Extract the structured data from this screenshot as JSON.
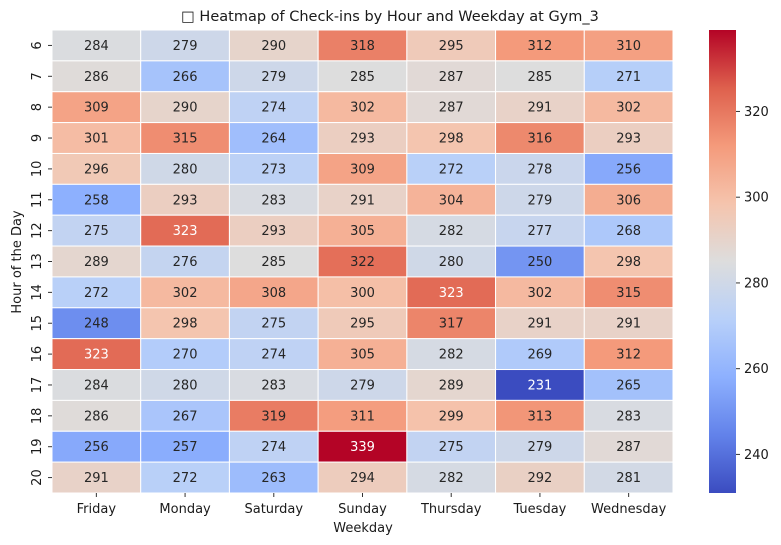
{
  "chart_data": {
    "type": "heatmap",
    "title": "□ Heatmap of Check-ins by Hour and Weekday at Gym_3",
    "xlabel": "Weekday",
    "ylabel": "Hour of the Day",
    "x_categories": [
      "Friday",
      "Monday",
      "Saturday",
      "Sunday",
      "Thursday",
      "Tuesday",
      "Wednesday"
    ],
    "y_categories": [
      "6",
      "7",
      "8",
      "9",
      "10",
      "11",
      "12",
      "13",
      "14",
      "15",
      "16",
      "17",
      "18",
      "19",
      "20"
    ],
    "values": [
      [
        284,
        279,
        290,
        318,
        295,
        312,
        310
      ],
      [
        286,
        266,
        279,
        285,
        287,
        285,
        271
      ],
      [
        309,
        290,
        274,
        302,
        287,
        291,
        302
      ],
      [
        301,
        315,
        264,
        293,
        298,
        316,
        293
      ],
      [
        296,
        280,
        273,
        309,
        272,
        278,
        256
      ],
      [
        258,
        293,
        283,
        291,
        304,
        279,
        306
      ],
      [
        275,
        323,
        293,
        305,
        282,
        277,
        268
      ],
      [
        289,
        276,
        285,
        322,
        280,
        250,
        298
      ],
      [
        272,
        302,
        308,
        300,
        323,
        302,
        315
      ],
      [
        248,
        298,
        275,
        295,
        317,
        291,
        291
      ],
      [
        323,
        270,
        274,
        305,
        282,
        269,
        312
      ],
      [
        284,
        280,
        283,
        279,
        289,
        231,
        265
      ],
      [
        286,
        267,
        319,
        311,
        299,
        313,
        283
      ],
      [
        256,
        257,
        274,
        339,
        275,
        279,
        287
      ],
      [
        291,
        272,
        263,
        294,
        282,
        292,
        281
      ]
    ],
    "colormap": "coolwarm",
    "vmin": 231,
    "vmax": 339,
    "colorbar_ticks": [
      240,
      260,
      280,
      300,
      320
    ],
    "annotations": true
  }
}
